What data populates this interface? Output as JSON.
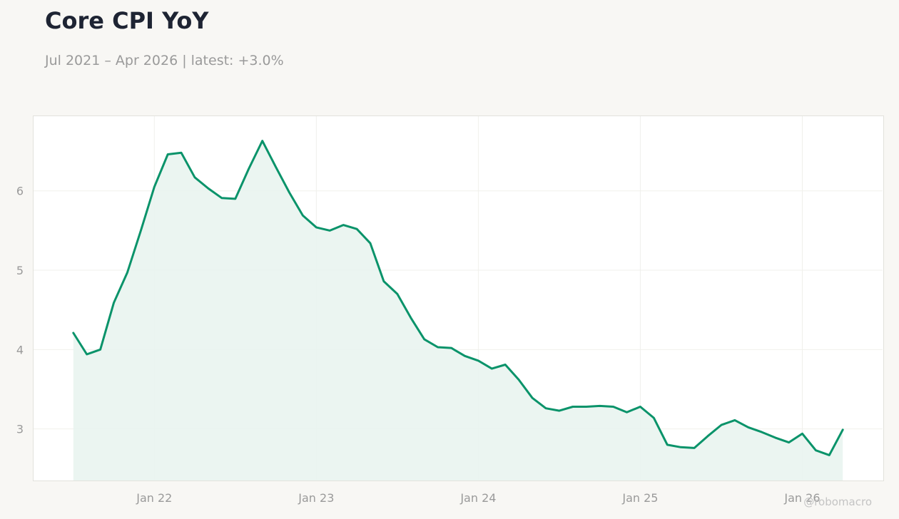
{
  "header": {
    "title": "Core CPI YoY",
    "subtitle": "Jul 2021 – Apr 2026 | latest: +3.0%"
  },
  "credit": "@robomacro",
  "colors": {
    "line": "#0a936a",
    "fill": "#e9f4ef",
    "title": "#1e2433",
    "muted": "#9a9a9a",
    "background": "#f8f7f4",
    "plot_background": "#ffffff"
  },
  "chart_data": {
    "type": "area",
    "title": "Core CPI YoY",
    "xlabel": "",
    "ylabel": "",
    "x_start": "2021-07",
    "x_end": "2026-04",
    "frequency": "monthly",
    "x_ticks": [
      "Jan 22",
      "Jan 23",
      "Jan 24",
      "Jan 25",
      "Jan 26"
    ],
    "x_tick_dates": [
      "2022-01",
      "2023-01",
      "2024-01",
      "2025-01",
      "2026-01"
    ],
    "y_ticks": [
      3,
      4,
      5,
      6
    ],
    "ylim": [
      2.35,
      6.95
    ],
    "xlim": [
      "2021-04",
      "2026-07"
    ],
    "grid": true,
    "series": [
      {
        "values": [
          4.21,
          3.94,
          4.0,
          4.59,
          4.97,
          5.5,
          6.05,
          6.46,
          6.48,
          6.17,
          6.03,
          5.91,
          5.9,
          6.28,
          6.63,
          6.3,
          5.98,
          5.69,
          5.54,
          5.5,
          5.57,
          5.52,
          5.34,
          4.86,
          4.7,
          4.4,
          4.13,
          4.03,
          4.02,
          3.92,
          3.86,
          3.76,
          3.81,
          3.62,
          3.39,
          3.26,
          3.23,
          3.28,
          3.28,
          3.29,
          3.28,
          3.21,
          3.28,
          3.14,
          2.8,
          2.77,
          2.76,
          2.91,
          3.05,
          3.11,
          3.02,
          2.96,
          2.89,
          2.83,
          2.94,
          2.73,
          2.67,
          2.99
        ]
      }
    ]
  }
}
